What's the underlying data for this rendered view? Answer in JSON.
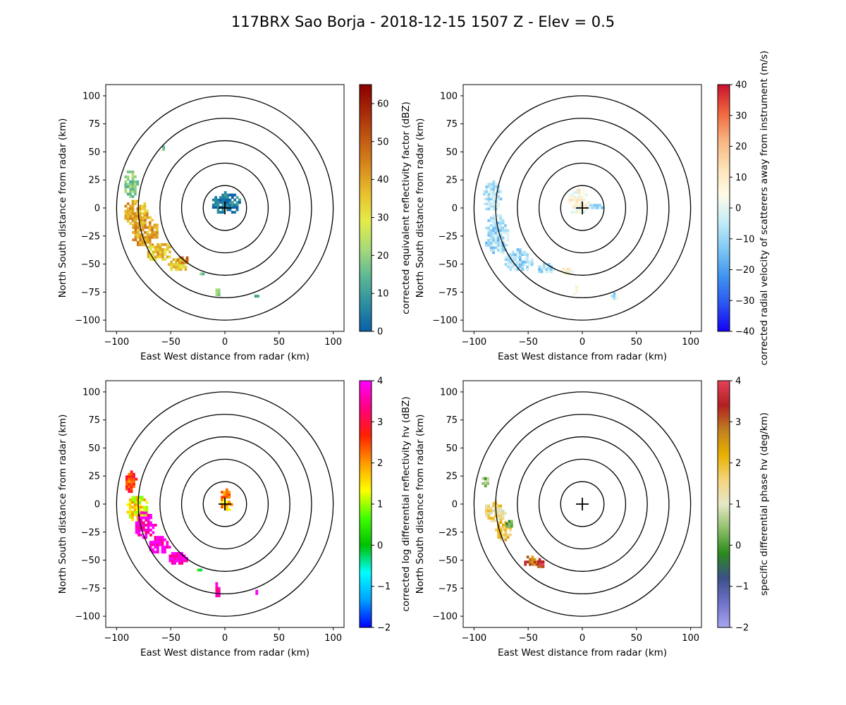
{
  "figure": {
    "title": "117BRX Sao Borja - 2018-12-15 1507 Z -  Elev = 0.5"
  },
  "chart_data": [
    {
      "type": "heatmap",
      "id": "reflectivity",
      "xlabel": "East West distance from radar (km)",
      "ylabel": "North South distance from radar (km)",
      "xlim": [
        -110,
        110
      ],
      "ylim": [
        -110,
        110
      ],
      "xticks": [
        -100,
        -50,
        0,
        50,
        100
      ],
      "yticks": [
        -100,
        -75,
        -50,
        -25,
        0,
        25,
        50,
        75,
        100
      ],
      "range_rings_km": [
        20,
        40,
        60,
        80,
        100
      ],
      "colorbar": {
        "label": "corrected equivalent reflectivity factor (dBZ)",
        "vmin": 0,
        "vmax": 65,
        "ticks": [
          0,
          10,
          20,
          30,
          40,
          50,
          60
        ],
        "colors": [
          "#0a5fa6",
          "#2b8fa0",
          "#5cb894",
          "#a6d97a",
          "#e3ec4a",
          "#e8c12f",
          "#d88a1e",
          "#c25a12",
          "#a62a08",
          "#8b0000"
        ]
      },
      "echo_regions": [
        {
          "x": -88,
          "y": 20,
          "rx": 7,
          "ry": 13,
          "value": 18
        },
        {
          "x": -83,
          "y": -5,
          "rx": 12,
          "ry": 12,
          "value": 38
        },
        {
          "x": -75,
          "y": -22,
          "rx": 13,
          "ry": 14,
          "value": 40
        },
        {
          "x": -62,
          "y": -40,
          "rx": 12,
          "ry": 9,
          "value": 35
        },
        {
          "x": -45,
          "y": -52,
          "rx": 10,
          "ry": 6,
          "value": 33
        },
        {
          "x": -40,
          "y": -48,
          "rx": 7,
          "ry": 4,
          "value": 45
        },
        {
          "x": -25,
          "y": -60,
          "rx": 5,
          "ry": 2,
          "value": 18
        },
        {
          "x": -8,
          "y": -78,
          "rx": 3,
          "ry": 7,
          "value": 20
        },
        {
          "x": 28,
          "y": -80,
          "rx": 3,
          "ry": 4,
          "value": 15
        },
        {
          "x": -58,
          "y": 52,
          "rx": 2,
          "ry": 3,
          "value": 15
        },
        {
          "x": 0,
          "y": 3,
          "rx": 14,
          "ry": 10,
          "value": 5
        }
      ]
    },
    {
      "type": "heatmap",
      "id": "velocity",
      "xlabel": "East West distance from radar (km)",
      "ylabel": "North South distance from radar (km)",
      "xlim": [
        -110,
        110
      ],
      "ylim": [
        -110,
        110
      ],
      "xticks": [
        -100,
        -50,
        0,
        50,
        100
      ],
      "yticks": [
        -100,
        -75,
        -50,
        -25,
        0,
        25,
        50,
        75,
        100
      ],
      "range_rings_km": [
        20,
        40,
        60,
        80,
        100
      ],
      "colorbar": {
        "label": "corrected radial velocity of scatterers away from instrument (m/s)",
        "vmin": -40,
        "vmax": 40,
        "ticks": [
          -40,
          -30,
          -20,
          -10,
          0,
          10,
          20,
          30,
          40
        ],
        "colors": [
          "#1400f5",
          "#2a55f0",
          "#3f94ef",
          "#7ec8f5",
          "#c6ecf8",
          "#fffce6",
          "#fde0b4",
          "#f8b27e",
          "#f0643d",
          "#c8102e"
        ]
      },
      "echo_regions": [
        {
          "x": -85,
          "y": 10,
          "rx": 9,
          "ry": 14,
          "value": -6
        },
        {
          "x": -80,
          "y": -25,
          "rx": 12,
          "ry": 18,
          "value": -8
        },
        {
          "x": -60,
          "y": -48,
          "rx": 14,
          "ry": 10,
          "value": -10
        },
        {
          "x": -35,
          "y": -55,
          "rx": 8,
          "ry": 5,
          "value": -8
        },
        {
          "x": -15,
          "y": -58,
          "rx": 6,
          "ry": 4,
          "value": 5
        },
        {
          "x": -8,
          "y": -75,
          "rx": 3,
          "ry": 5,
          "value": 4
        },
        {
          "x": 28,
          "y": -80,
          "rx": 4,
          "ry": 4,
          "value": -5
        },
        {
          "x": -5,
          "y": 5,
          "rx": 10,
          "ry": 12,
          "value": 6
        },
        {
          "x": 12,
          "y": 0,
          "rx": 8,
          "ry": 3,
          "value": -10
        }
      ]
    },
    {
      "type": "heatmap",
      "id": "zdr",
      "xlabel": "East West distance from radar (km)",
      "ylabel": "North South distance from radar (km)",
      "xlim": [
        -110,
        110
      ],
      "ylim": [
        -110,
        110
      ],
      "xticks": [
        -100,
        -50,
        0,
        50,
        100
      ],
      "yticks": [
        -100,
        -75,
        -50,
        -25,
        0,
        25,
        50,
        75,
        100
      ],
      "range_rings_km": [
        20,
        40,
        60,
        80,
        100
      ],
      "colorbar": {
        "label": "corrected log differential reflectivity hv (dBZ)",
        "vmin": -2,
        "vmax": 4,
        "ticks": [
          -2,
          -1,
          0,
          1,
          2,
          3,
          4
        ],
        "colors": [
          "#0000ff",
          "#00a0ff",
          "#00ffff",
          "#00c000",
          "#40ff00",
          "#ffff00",
          "#ff9a00",
          "#ff2000",
          "#ff0080",
          "#ff00ff"
        ]
      },
      "echo_regions": [
        {
          "x": -88,
          "y": 18,
          "rx": 6,
          "ry": 10,
          "value": 2.5
        },
        {
          "x": -82,
          "y": -5,
          "rx": 11,
          "ry": 12,
          "value": 1.5
        },
        {
          "x": -75,
          "y": -20,
          "rx": 10,
          "ry": 13,
          "value": 3.8
        },
        {
          "x": -62,
          "y": -38,
          "rx": 10,
          "ry": 8,
          "value": 3.9
        },
        {
          "x": -45,
          "y": -50,
          "rx": 9,
          "ry": 6,
          "value": 3.9
        },
        {
          "x": -25,
          "y": -60,
          "rx": 5,
          "ry": 2,
          "value": 0.4
        },
        {
          "x": -8,
          "y": -78,
          "rx": 3,
          "ry": 7,
          "value": 3.5
        },
        {
          "x": 28,
          "y": -80,
          "rx": 2,
          "ry": 3,
          "value": 3.9
        },
        {
          "x": 0,
          "y": 2,
          "rx": 6,
          "ry": 10,
          "value": 2.0
        }
      ]
    },
    {
      "type": "heatmap",
      "id": "kdp",
      "xlabel": "East West distance from radar (km)",
      "ylabel": "North South distance from radar (km)",
      "xlim": [
        -110,
        110
      ],
      "ylim": [
        -110,
        110
      ],
      "xticks": [
        -100,
        -50,
        0,
        50,
        100
      ],
      "yticks": [
        -100,
        -75,
        -50,
        -25,
        0,
        25,
        50,
        75,
        100
      ],
      "range_rings_km": [
        20,
        40,
        60,
        80,
        100
      ],
      "colorbar": {
        "label": "specific differential phase hv (deg/km)",
        "vmin": -2,
        "vmax": 4,
        "ticks": [
          -2,
          -1,
          0,
          1,
          2,
          3,
          4
        ],
        "colors": [
          "#a9a6f2",
          "#6f72c8",
          "#3c4f8a",
          "#2a8a1c",
          "#8fbf6a",
          "#e6e8c8",
          "#f3d47a",
          "#e8b000",
          "#c08020",
          "#b02020",
          "#e8405a"
        ]
      },
      "echo_regions": [
        {
          "x": -90,
          "y": 18,
          "rx": 5,
          "ry": 5,
          "value": 0.2
        },
        {
          "x": -82,
          "y": -8,
          "rx": 10,
          "ry": 10,
          "value": 1.5
        },
        {
          "x": -75,
          "y": -25,
          "rx": 8,
          "ry": 10,
          "value": 1.8
        },
        {
          "x": -68,
          "y": -18,
          "rx": 5,
          "ry": 5,
          "value": 0.0
        },
        {
          "x": -48,
          "y": -52,
          "rx": 8,
          "ry": 5,
          "value": 3.0
        },
        {
          "x": -40,
          "y": -55,
          "rx": 4,
          "ry": 4,
          "value": 3.5
        },
        {
          "x": -8,
          "y": -88,
          "rx": 1,
          "ry": 1,
          "value": 1.0
        }
      ]
    }
  ]
}
